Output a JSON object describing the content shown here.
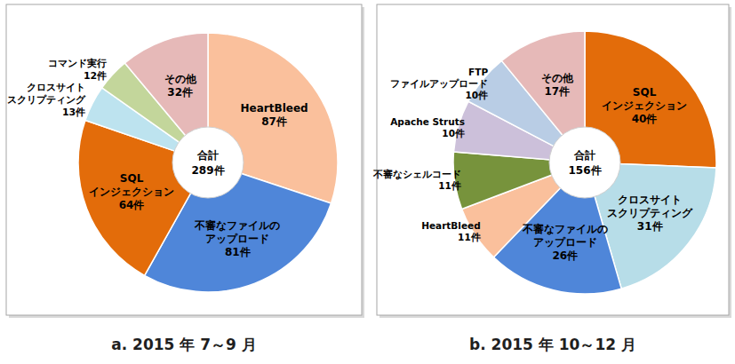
{
  "chart_data": [
    {
      "type": "donut",
      "title": "a. 2015 年 7～9 月",
      "center_label": "合計",
      "total": 289,
      "total_label": "289件",
      "categories": [
        "HeartBleed",
        "不審なファイルの\nアップロード",
        "SQL\nインジェクション",
        "クロスサイト\nスクリプティング",
        "コマンド実行",
        "その他"
      ],
      "values": [
        87,
        81,
        64,
        13,
        12,
        32
      ],
      "value_labels": [
        "87件",
        "81件",
        "64件",
        "13件",
        "12件",
        "32件"
      ],
      "colors": [
        "#fac09c",
        "#4f86d9",
        "#e36c0a",
        "#bde3ef",
        "#c3d69b",
        "#e6b9b8"
      ],
      "data_labels": true
    },
    {
      "type": "donut",
      "title": "b. 2015 年 10～12 月",
      "center_label": "合計",
      "total": 156,
      "total_label": "156件",
      "categories": [
        "SQL\nインジェクション",
        "クロスサイト\nスクリプティング",
        "不審なファイルの\nアップロード",
        "HeartBleed",
        "不審なシェルコード",
        "Apache Struts",
        "FTP\nファイルアップロード",
        "その他"
      ],
      "values": [
        40,
        31,
        26,
        11,
        11,
        10,
        10,
        17
      ],
      "value_labels": [
        "40件",
        "31件",
        "26件",
        "11件",
        "11件",
        "10件",
        "10件",
        "17件"
      ],
      "colors": [
        "#e36c0a",
        "#b7dde8",
        "#4f86d9",
        "#fac09c",
        "#77933c",
        "#ccc0da",
        "#b9cde5",
        "#e6b9b8"
      ],
      "data_labels": true
    }
  ]
}
